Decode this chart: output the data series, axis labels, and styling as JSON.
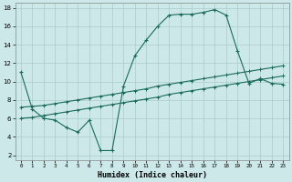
{
  "xlabel": "Humidex (Indice chaleur)",
  "bg_color": "#cce8e8",
  "line_color": "#1a6b5a",
  "grid_color": "#aacccc",
  "xlim": [
    -0.5,
    23.5
  ],
  "ylim": [
    1.5,
    18.5
  ],
  "yticks": [
    2,
    4,
    6,
    8,
    10,
    12,
    14,
    16,
    18
  ],
  "xticks": [
    0,
    1,
    2,
    3,
    4,
    5,
    6,
    7,
    8,
    9,
    10,
    11,
    12,
    13,
    14,
    15,
    16,
    17,
    18,
    19,
    20,
    21,
    22,
    23
  ],
  "line1_x": [
    0,
    1,
    2,
    3,
    4,
    5,
    6,
    7,
    8,
    9,
    10,
    11,
    12,
    13,
    14,
    15,
    16,
    17,
    18,
    19,
    20,
    21,
    22,
    23
  ],
  "line1_y": [
    11,
    7,
    6,
    5.8,
    5,
    4.5,
    5.8,
    2.5,
    2.5,
    9.5,
    12.8,
    14.5,
    16.0,
    17.2,
    17.3,
    17.3,
    17.5,
    17.8,
    17.2,
    13.3,
    9.8,
    10.3,
    9.8,
    9.7
  ],
  "line2_x": [
    0,
    1,
    2,
    3,
    4,
    5,
    6,
    7,
    8,
    9,
    10,
    11,
    12,
    13,
    14,
    15,
    16,
    17,
    18,
    19,
    20,
    21,
    22,
    23
  ],
  "line2_y": [
    7.2,
    7.3,
    7.4,
    7.6,
    7.8,
    8.0,
    8.2,
    8.4,
    8.6,
    8.8,
    9.0,
    9.2,
    9.5,
    9.7,
    9.9,
    10.1,
    10.3,
    10.5,
    10.7,
    10.9,
    11.1,
    11.3,
    11.5,
    11.7
  ],
  "line3_x": [
    0,
    1,
    2,
    3,
    4,
    5,
    6,
    7,
    8,
    9,
    10,
    11,
    12,
    13,
    14,
    15,
    16,
    17,
    18,
    19,
    20,
    21,
    22,
    23
  ],
  "line3_y": [
    6.0,
    6.1,
    6.3,
    6.5,
    6.7,
    6.9,
    7.1,
    7.3,
    7.5,
    7.7,
    7.9,
    8.1,
    8.3,
    8.6,
    8.8,
    9.0,
    9.2,
    9.4,
    9.6,
    9.8,
    10.0,
    10.2,
    10.4,
    10.6
  ]
}
